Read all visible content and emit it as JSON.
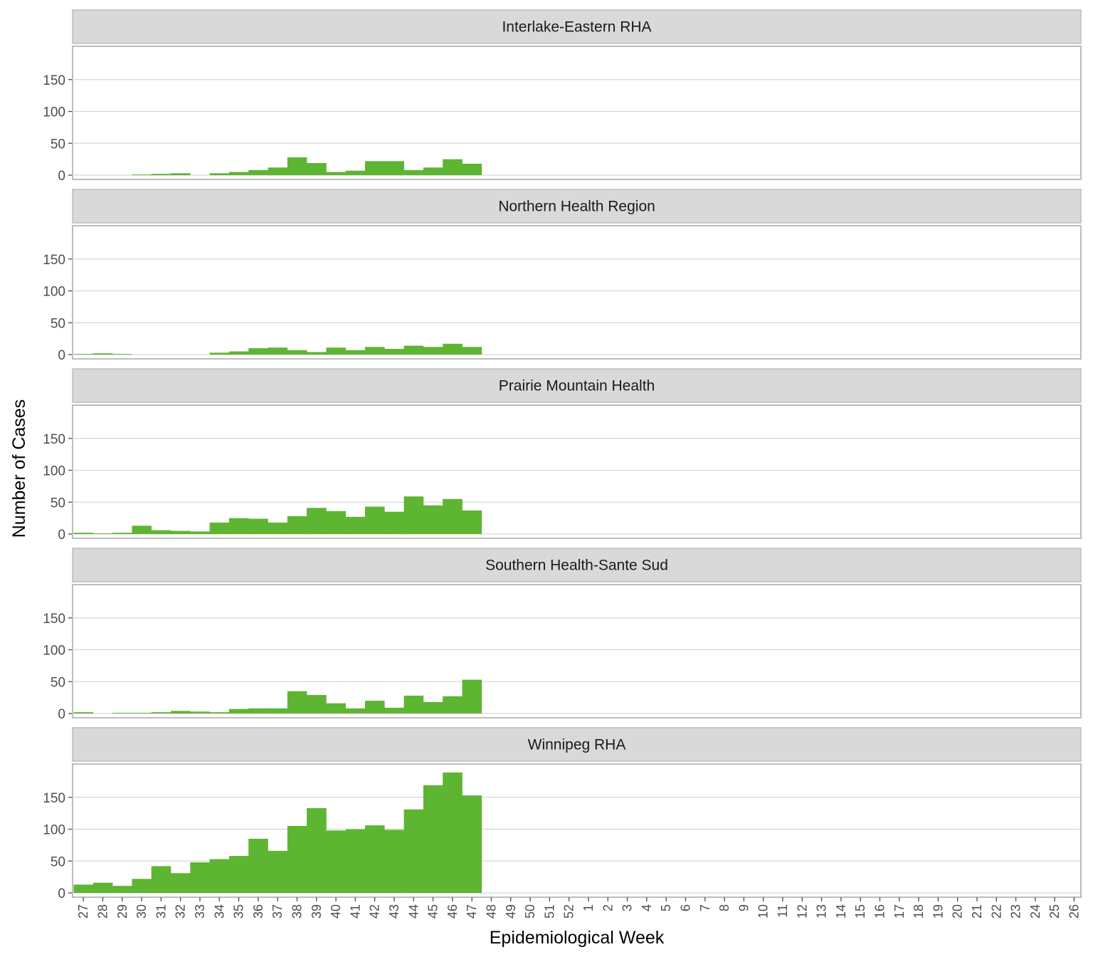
{
  "chart_data": {
    "type": "bar",
    "layout": "faceted-vertical",
    "xlabel": "Epidemiological Week",
    "ylabel": "Number of Cases",
    "ylim": [
      0,
      200
    ],
    "yticks": [
      0,
      50,
      100,
      150
    ],
    "grid": true,
    "bar_color": "#5db531",
    "weeks": [
      "27",
      "28",
      "29",
      "30",
      "31",
      "32",
      "33",
      "34",
      "35",
      "36",
      "37",
      "38",
      "39",
      "40",
      "41",
      "42",
      "43",
      "44",
      "45",
      "46",
      "47",
      "48",
      "49",
      "50",
      "51",
      "52",
      "1",
      "2",
      "3",
      "4",
      "5",
      "6",
      "7",
      "8",
      "9",
      "10",
      "11",
      "12",
      "13",
      "14",
      "15",
      "16",
      "17",
      "18",
      "19",
      "20",
      "21",
      "22",
      "23",
      "24",
      "25",
      "26"
    ],
    "panels": [
      {
        "name": "Interlake-Eastern RHA",
        "values": [
          0,
          0,
          0,
          1,
          2,
          3,
          0,
          3,
          5,
          8,
          12,
          28,
          19,
          5,
          7,
          22,
          22,
          8,
          12,
          25,
          18
        ]
      },
      {
        "name": "Northern Health Region",
        "values": [
          1,
          2,
          1,
          0,
          0,
          0,
          0,
          3,
          5,
          10,
          11,
          7,
          4,
          11,
          7,
          12,
          9,
          14,
          12,
          17,
          12
        ]
      },
      {
        "name": "Prairie Mountain Health",
        "values": [
          2,
          1,
          2,
          13,
          6,
          5,
          4,
          18,
          25,
          24,
          18,
          28,
          41,
          36,
          27,
          43,
          35,
          59,
          45,
          55,
          37
        ]
      },
      {
        "name": "Southern Health-Sante Sud",
        "values": [
          2,
          0,
          1,
          1,
          2,
          4,
          3,
          2,
          7,
          8,
          8,
          35,
          29,
          16,
          8,
          20,
          9,
          28,
          18,
          27,
          53
        ]
      },
      {
        "name": "Winnipeg RHA",
        "values": [
          13,
          16,
          11,
          22,
          42,
          31,
          48,
          53,
          58,
          85,
          66,
          105,
          133,
          98,
          100,
          106,
          99,
          131,
          169,
          189,
          153
        ]
      }
    ]
  }
}
